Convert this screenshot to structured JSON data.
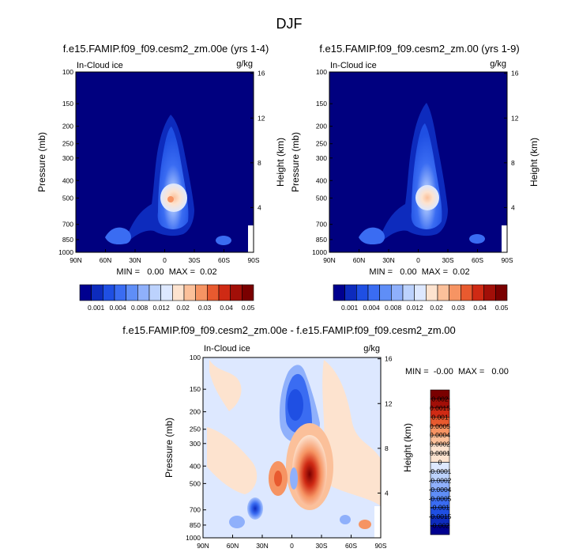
{
  "main_title": "DJF",
  "palette": {
    "seq": [
      "#00008f",
      "#0d2bbd",
      "#1f4fe3",
      "#3a6cf2",
      "#5f8ef7",
      "#8fb0fb",
      "#bcd2fd",
      "#dde8ff",
      "#fde3cf",
      "#fbc09a",
      "#f69463",
      "#e85a2f",
      "#cf2a14",
      "#a20f08",
      "#7a0000"
    ],
    "div": [
      "#00008f",
      "#0d2bbd",
      "#1f4fe3",
      "#3a6cf2",
      "#5f8ef7",
      "#8fb0fb",
      "#bcd2fd",
      "#dde8ff",
      "#fde3cf",
      "#fbc09a",
      "#f69463",
      "#e85a2f",
      "#cf2a14",
      "#a20f08",
      "#7a0000"
    ],
    "background_field": "#00007f"
  },
  "chart_data": [
    {
      "type": "contour",
      "title": "f.e15.FAMIP.f09_f09.cesm2_zm.00e (yrs 1-4)",
      "left_label": "In-Cloud ice",
      "right_label": "g/kg",
      "xlabel": "",
      "ylabel": "Pressure (mb)",
      "ylabel_right": "Height (km)",
      "x_ticks": [
        "90N",
        "60N",
        "30N",
        "0",
        "30S",
        "60S",
        "90S"
      ],
      "y_ticks": [
        "100",
        "150",
        "200",
        "250",
        "300",
        "400",
        "500",
        "700",
        "850",
        "1000"
      ],
      "y_right_ticks": [
        "16",
        "12",
        "8",
        "4"
      ],
      "stats": "MIN =   0.00  MAX =  0.02",
      "colorbar_labels": [
        "0.001",
        "0.004",
        "0.008",
        "0.012",
        "0.02",
        "0.03",
        "0.04",
        "0.05"
      ],
      "peak_value": 0.02
    },
    {
      "type": "contour",
      "title": "f.e15.FAMIP.f09_f09.cesm2_zm.00 (yrs 1-9)",
      "left_label": "In-Cloud ice",
      "right_label": "g/kg",
      "xlabel": "",
      "ylabel": "Pressure (mb)",
      "ylabel_right": "Height (km)",
      "x_ticks": [
        "90N",
        "60N",
        "30N",
        "0",
        "30S",
        "60S",
        "90S"
      ],
      "y_ticks": [
        "100",
        "150",
        "200",
        "250",
        "300",
        "400",
        "500",
        "700",
        "850",
        "1000"
      ],
      "y_right_ticks": [
        "16",
        "12",
        "8",
        "4"
      ],
      "stats": "MIN =   0.00  MAX =  0.02",
      "colorbar_labels": [
        "0.001",
        "0.004",
        "0.008",
        "0.012",
        "0.02",
        "0.03",
        "0.04",
        "0.05"
      ],
      "peak_value": 0.02
    },
    {
      "type": "contour",
      "title": "f.e15.FAMIP.f09_f09.cesm2_zm.00e - f.e15.FAMIP.f09_f09.cesm2_zm.00",
      "left_label": "In-Cloud ice",
      "right_label": "g/kg",
      "xlabel": "",
      "ylabel": "Pressure (mb)",
      "ylabel_right": "Height (km)",
      "x_ticks": [
        "90N",
        "60N",
        "30N",
        "0",
        "30S",
        "60S",
        "90S"
      ],
      "y_ticks": [
        "100",
        "150",
        "200",
        "250",
        "300",
        "400",
        "500",
        "700",
        "850",
        "1000"
      ],
      "y_right_ticks": [
        "16",
        "12",
        "8",
        "4"
      ],
      "stats": "MIN =  -0.00  MAX =   0.00",
      "colorbar_labels": [
        "0.002",
        "0.0015",
        "0.001",
        "0.0005",
        "0.0004",
        "0.0002",
        "0.0001",
        "0",
        "-0.0001",
        "-0.0002",
        "-0.0004",
        "-0.0005",
        "-0.001",
        "-0.0015",
        "-0.002"
      ]
    }
  ]
}
